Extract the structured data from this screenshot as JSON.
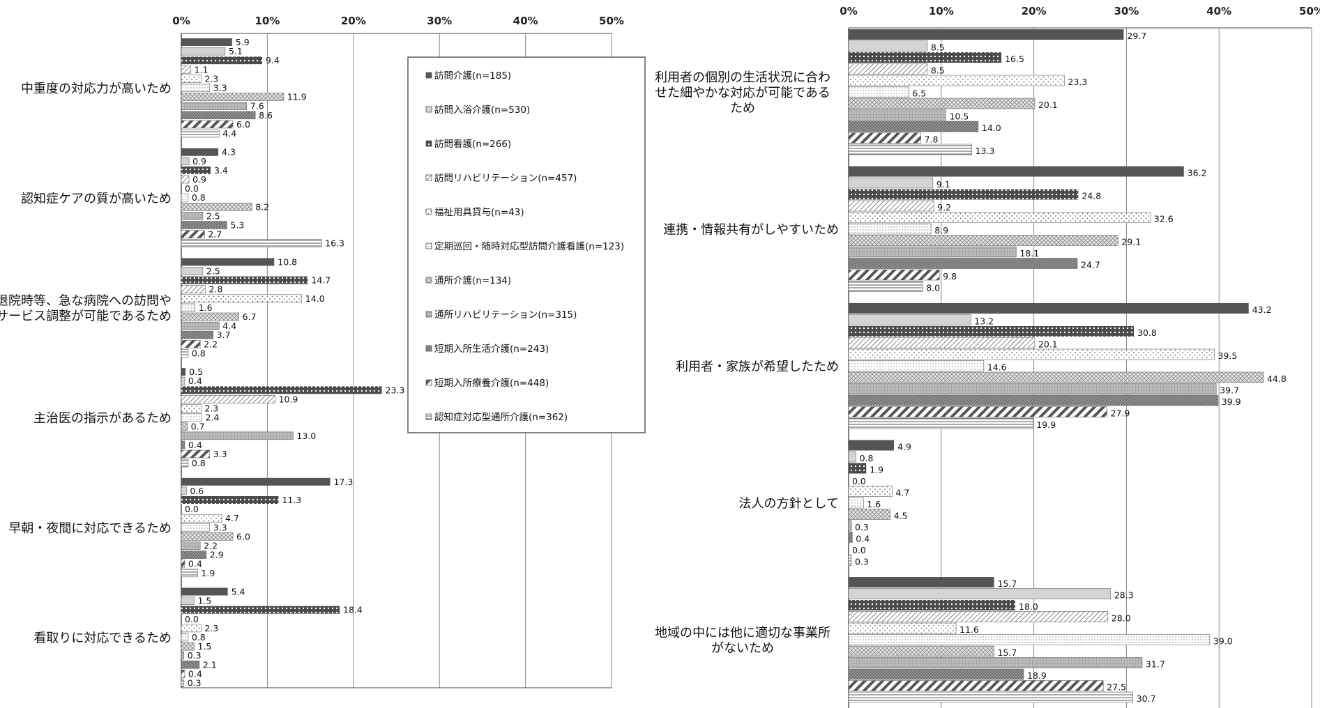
{
  "legend_series": [
    "訪問介護(n=185)",
    "訪問入浴介護(n=530)",
    "訪問看護(n=266)",
    "訪問リハビリテーション(n=457)",
    "福祉用具貸与(n=43)",
    "定期巡回・随時対応型訪問介護看護(n=123)",
    "通所介護(n=134)",
    "通所リハビリテーション(n=315)",
    "短期入所生活介護(n=243)",
    "短期入所療養介護(n=448)",
    "認知症対応型通所介護(n=362)"
  ],
  "series_patterns": [
    "solid-dark",
    "solid-light",
    "dots-dark",
    "diag-hatch",
    "sparse-dots",
    "fine-dots",
    "cross-hatch",
    "dense-grid",
    "checker-dark",
    "wide-diag",
    "horizontal-lines"
  ],
  "colors": {
    "dark": "#555555",
    "light": "#d4d4d4",
    "axis": "#444444",
    "grid": "#888888"
  },
  "chart_data": [
    {
      "type": "bar",
      "orientation": "horizontal",
      "xlim": [
        0,
        50
      ],
      "tick_labels": [
        "0%",
        "10%",
        "20%",
        "30%",
        "40%",
        "50%"
      ],
      "grid": true,
      "legend_position": "right-inside",
      "categories": [
        "中重度の対応力が高いため",
        "認知症ケアの質が高いため",
        "退院時等、急な病院への訪問や\nサービス調整が可能であるため",
        "主治医の指示があるため",
        "土日、早朝・夜間に対応できるため",
        "看取りに対応できるため"
      ],
      "values": [
        [
          "5.9",
          "5.1",
          "9.4",
          "1.1",
          "2.3",
          "3.3",
          "11.9",
          "7.6",
          "8.6",
          "6.0",
          "4.4"
        ],
        [
          "4.3",
          "0.9",
          "3.4",
          "0.9",
          "0.0",
          "0.8",
          "8.2",
          "2.5",
          "5.3",
          "2.7",
          "16.3"
        ],
        [
          "10.8",
          "2.5",
          "14.7",
          "2.8",
          "14.0",
          "1.6",
          "6.7",
          "4.4",
          "3.7",
          "2.2",
          "0.8"
        ],
        [
          "0.5",
          "0.4",
          "23.3",
          "10.9",
          "2.3",
          "2.4",
          "0.7",
          "13.0",
          "0.4",
          "3.3",
          "0.8"
        ],
        [
          "17.3",
          "0.6",
          "11.3",
          "0.0",
          "4.7",
          "3.3",
          "6.0",
          "2.2",
          "2.9",
          "0.4",
          "1.9"
        ],
        [
          "5.4",
          "1.5",
          "18.4",
          "0.0",
          "2.3",
          "0.8",
          "1.5",
          "0.3",
          "2.1",
          "0.4",
          "0.3"
        ]
      ]
    },
    {
      "type": "bar",
      "orientation": "horizontal",
      "xlim": [
        0,
        50
      ],
      "tick_labels": [
        "0%",
        "10%",
        "20%",
        "30%",
        "40%",
        "50%"
      ],
      "grid": true,
      "categories": [
        "利用者の個別の生活状況に合わ\nせた細やかな対応が可能である\nため",
        "連携・情報共有がしやすいため",
        "利用者・家族が希望したため",
        "法人の方針として",
        "地域の中には他に適切な事業所\nがないため"
      ],
      "values": [
        [
          "29.7",
          "8.5",
          "16.5",
          "8.5",
          "23.3",
          "6.5",
          "20.1",
          "10.5",
          "14.0",
          "7.8",
          "13.3"
        ],
        [
          "36.2",
          "9.1",
          "24.8",
          "9.2",
          "32.6",
          "8.9",
          "29.1",
          "18.1",
          "24.7",
          "9.8",
          "8.0"
        ],
        [
          "43.2",
          "13.2",
          "30.8",
          "20.1",
          "39.5",
          "14.6",
          "44.8",
          "39.7",
          "39.9",
          "27.9",
          "19.9"
        ],
        [
          "4.9",
          "0.8",
          "1.9",
          "0.0",
          "4.7",
          "1.6",
          "4.5",
          "0.3",
          "0.4",
          "0.0",
          "0.3"
        ],
        [
          "15.7",
          "28.3",
          "18.0",
          "28.0",
          "11.6",
          "39.0",
          "15.7",
          "31.7",
          "18.9",
          "27.5",
          "30.7"
        ]
      ]
    }
  ]
}
